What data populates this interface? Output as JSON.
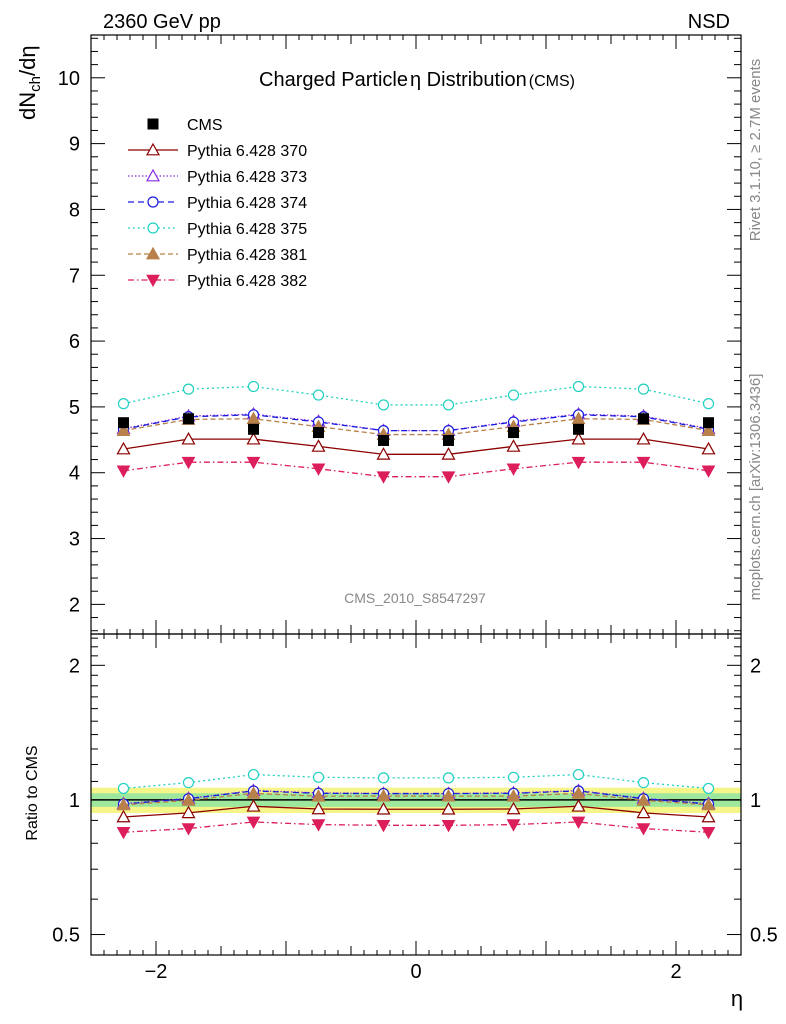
{
  "header": {
    "left": "2360 GeV pp",
    "right": "NSD"
  },
  "title": {
    "main": "Charged Particle",
    "eta": "η",
    "main2": " Distribution",
    "suffix": "(CMS)"
  },
  "watermark": "CMS_2010_S8547297",
  "side_text": {
    "top": "Rivet 3.1.10, ≥ 2.7M events",
    "bottom": "mcplots.cern.ch [arXiv:1306.3436]"
  },
  "chart_data": {
    "type": "line",
    "top_panel": {
      "ylabel": {
        "d": "dN",
        "sub": "ch",
        "rest": "/dη"
      },
      "ylim": [
        1.55,
        10.65
      ],
      "yticks": [
        {
          "v": 2,
          "label": "2"
        },
        {
          "v": 3,
          "label": "3"
        },
        {
          "v": 4,
          "label": "4"
        },
        {
          "v": 5,
          "label": "5"
        },
        {
          "v": 6,
          "label": "6"
        },
        {
          "v": 7,
          "label": "7"
        },
        {
          "v": 8,
          "label": "8"
        },
        {
          "v": 9,
          "label": "9"
        },
        {
          "v": 10,
          "label": "10"
        }
      ]
    },
    "ratio_panel": {
      "ylabel": "Ratio to CMS",
      "ylim": [
        0.45,
        2.35
      ],
      "log": true,
      "yticks": [
        {
          "v": 0.5,
          "label": "0.5"
        },
        {
          "v": 1,
          "label": "1"
        },
        {
          "v": 2,
          "label": "2"
        }
      ],
      "band_inner": [
        0.965,
        1.035
      ],
      "band_outer": [
        0.935,
        1.065
      ]
    },
    "xlabel": "η",
    "xlim": [
      -2.5,
      2.5
    ],
    "xticks": [
      {
        "v": -2,
        "label": "−2"
      },
      {
        "v": 0,
        "label": "0"
      },
      {
        "v": 2,
        "label": "2"
      }
    ],
    "x": [
      -2.25,
      -1.75,
      -1.25,
      -0.75,
      -0.25,
      0.25,
      0.75,
      1.25,
      1.75,
      2.25
    ],
    "data": {
      "name": "CMS",
      "values": [
        4.76,
        4.82,
        4.66,
        4.61,
        4.49,
        4.49,
        4.61,
        4.66,
        4.82,
        4.76
      ]
    },
    "series": [
      {
        "name": "Pythia 6.428 370",
        "color": "#8b0000",
        "marker": "triangle-open",
        "dash": "",
        "values": [
          4.36,
          4.51,
          4.51,
          4.4,
          4.28,
          4.28,
          4.4,
          4.51,
          4.51,
          4.36
        ]
      },
      {
        "name": "Pythia 6.428 373",
        "color": "#8a2be2",
        "marker": "triangle-open",
        "dash": "1.5,2",
        "values": [
          4.67,
          4.86,
          4.89,
          4.78,
          4.64,
          4.64,
          4.78,
          4.89,
          4.86,
          4.67
        ]
      },
      {
        "name": "Pythia 6.428 374",
        "color": "#1a1adc",
        "marker": "circle-open",
        "dash": "6,4",
        "values": [
          4.66,
          4.85,
          4.88,
          4.77,
          4.64,
          4.64,
          4.77,
          4.88,
          4.85,
          4.66
        ]
      },
      {
        "name": "Pythia 6.428 375",
        "color": "#20d0c0",
        "marker": "circle-open",
        "dash": "2,3",
        "values": [
          5.05,
          5.27,
          5.31,
          5.18,
          5.03,
          5.03,
          5.18,
          5.31,
          5.27,
          5.05
        ]
      },
      {
        "name": "Pythia 6.428 381",
        "color": "#b8804a",
        "marker": "triangle-filled",
        "dash": "5,3",
        "values": [
          4.64,
          4.81,
          4.82,
          4.7,
          4.58,
          4.58,
          4.7,
          4.82,
          4.81,
          4.64
        ]
      },
      {
        "name": "Pythia 6.428 382",
        "color": "#dc1e5a",
        "marker": "triangle-down-filled",
        "dash": "6,3,1.5,3",
        "values": [
          4.03,
          4.16,
          4.16,
          4.06,
          3.94,
          3.94,
          4.06,
          4.16,
          4.16,
          4.03
        ]
      }
    ]
  }
}
